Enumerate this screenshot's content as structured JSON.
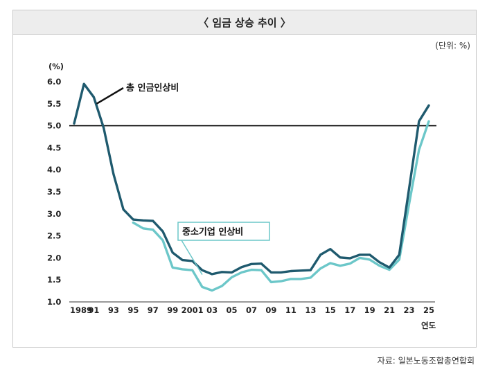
{
  "header": {
    "title": "〈 임금 상승 추이 〉"
  },
  "unit_label": "(단위: %)",
  "source_label": "자료: 일본노동조합총연합회",
  "colors": {
    "total": "#1f5a6e",
    "sme": "#6cc7c9",
    "reference": "#000000",
    "frame": "#c8c8c8",
    "titlebar": "#ededed"
  },
  "chart_data": {
    "type": "line",
    "title": "〈 임금 상승 추이 〉",
    "ylabel": "(%)",
    "xlabel": "연도",
    "ylim": [
      1.0,
      6.0
    ],
    "yticks": [
      "1.0",
      "1.5",
      "2.0",
      "2.5",
      "3.0",
      "3.5",
      "4.0",
      "4.5",
      "5.0",
      "5.5",
      "6.0"
    ],
    "xticks": [
      "1989",
      "91",
      "93",
      "95",
      "97",
      "99",
      "2001",
      "03",
      "05",
      "07",
      "09",
      "11",
      "13",
      "15",
      "17",
      "19",
      "21",
      "23",
      "25"
    ],
    "x": [
      1989,
      1990,
      1991,
      1992,
      1993,
      1994,
      1995,
      1996,
      1997,
      1998,
      1999,
      2000,
      2001,
      2002,
      2003,
      2004,
      2005,
      2006,
      2007,
      2008,
      2009,
      2010,
      2011,
      2012,
      2013,
      2014,
      2015,
      2016,
      2017,
      2018,
      2019,
      2020,
      2021,
      2022,
      2023,
      2024,
      2025
    ],
    "reference_line": 5.0,
    "series": [
      {
        "name": "총 인금인상비",
        "values": [
          5.05,
          5.95,
          5.65,
          4.95,
          3.9,
          3.1,
          2.87,
          2.85,
          2.84,
          2.6,
          2.12,
          1.95,
          1.93,
          1.72,
          1.63,
          1.68,
          1.67,
          1.79,
          1.86,
          1.87,
          1.67,
          1.67,
          1.7,
          1.71,
          1.72,
          2.07,
          2.2,
          2.01,
          1.99,
          2.07,
          2.07,
          1.9,
          1.78,
          2.07,
          3.58,
          5.1,
          5.46
        ]
      },
      {
        "name": "중소기업 인상비",
        "values": [
          null,
          null,
          null,
          null,
          null,
          null,
          2.8,
          2.67,
          2.64,
          2.4,
          1.78,
          1.74,
          1.72,
          1.34,
          1.26,
          1.36,
          1.56,
          1.67,
          1.73,
          1.72,
          1.45,
          1.47,
          1.52,
          1.52,
          1.55,
          1.76,
          1.88,
          1.82,
          1.87,
          2.0,
          1.96,
          1.82,
          1.73,
          1.96,
          3.23,
          4.45,
          5.1
        ]
      }
    ]
  }
}
